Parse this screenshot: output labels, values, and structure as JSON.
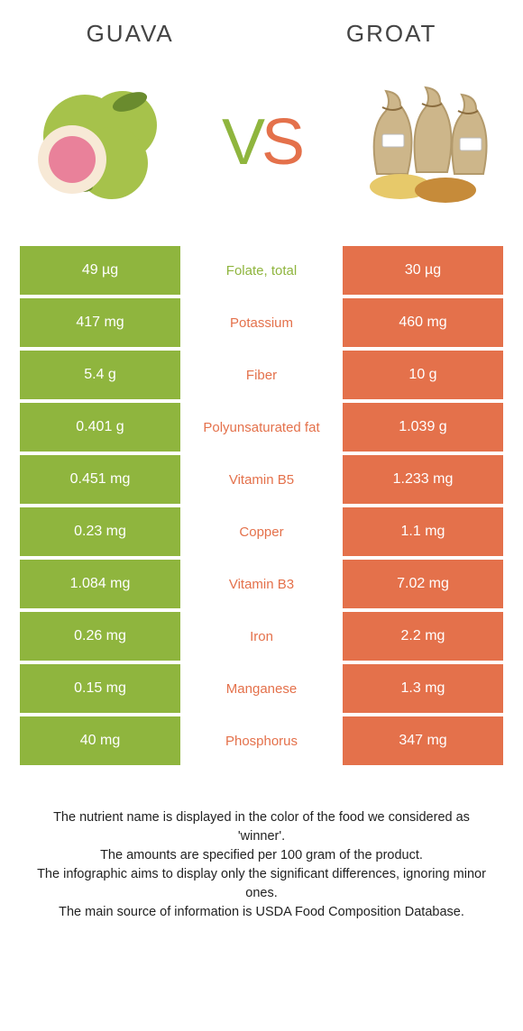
{
  "colors": {
    "left_bg": "#8fb53e",
    "right_bg": "#e4714b",
    "left_text": "#ffffff",
    "right_text": "#ffffff",
    "mid_left_color": "#8fb53e",
    "mid_right_color": "#e4714b",
    "heading_color": "#444444",
    "footer_color": "#222222",
    "page_bg": "#ffffff"
  },
  "header": {
    "left_title": "GUAVA",
    "right_title": "GROAT",
    "vs_v": "V",
    "vs_s": "S"
  },
  "rows": [
    {
      "left": "49 µg",
      "label": "Folate, total",
      "right": "30 µg",
      "winner": "left"
    },
    {
      "left": "417 mg",
      "label": "Potassium",
      "right": "460 mg",
      "winner": "right"
    },
    {
      "left": "5.4 g",
      "label": "Fiber",
      "right": "10 g",
      "winner": "right"
    },
    {
      "left": "0.401 g",
      "label": "Polyunsaturated fat",
      "right": "1.039 g",
      "winner": "right"
    },
    {
      "left": "0.451 mg",
      "label": "Vitamin B5",
      "right": "1.233 mg",
      "winner": "right"
    },
    {
      "left": "0.23 mg",
      "label": "Copper",
      "right": "1.1 mg",
      "winner": "right"
    },
    {
      "left": "1.084 mg",
      "label": "Vitamin B3",
      "right": "7.02 mg",
      "winner": "right"
    },
    {
      "left": "0.26 mg",
      "label": "Iron",
      "right": "2.2 mg",
      "winner": "right"
    },
    {
      "left": "0.15 mg",
      "label": "Manganese",
      "right": "1.3 mg",
      "winner": "right"
    },
    {
      "left": "40 mg",
      "label": "Phosphorus",
      "right": "347 mg",
      "winner": "right"
    }
  ],
  "footer": {
    "line1": "The nutrient name is displayed in the color of the food we considered as 'winner'.",
    "line2": "The amounts are specified per 100 gram of the product.",
    "line3": "The infographic aims to display only the significant differences, ignoring minor ones.",
    "line4": "The main source of information is USDA Food Composition Database."
  }
}
